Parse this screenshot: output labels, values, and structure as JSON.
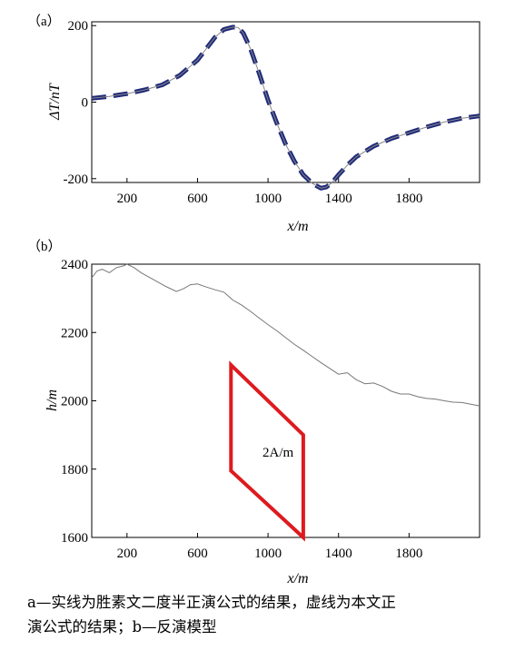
{
  "chart_data": [
    {
      "panel": "（a）",
      "type": "line",
      "ylabel": "ΔT/nT",
      "xlabel": "x/m",
      "xlim": [
        0,
        2200
      ],
      "ylim": [
        -210,
        210
      ],
      "xticks": [
        200,
        600,
        1000,
        1400,
        1800
      ],
      "yticks": [
        200,
        0,
        -200
      ],
      "grid": false,
      "series": [
        {
          "style": "solid-thin-gray",
          "color": "#888888",
          "x": [
            0,
            100,
            200,
            300,
            400,
            500,
            600,
            650,
            700,
            750,
            800,
            830,
            860,
            900,
            950,
            1000,
            1050,
            1100,
            1150,
            1200,
            1250,
            1280,
            1300,
            1330,
            1360,
            1400,
            1450,
            1500,
            1600,
            1700,
            1800,
            1900,
            2000,
            2100,
            2200
          ],
          "values": [
            10,
            15,
            22,
            32,
            45,
            70,
            110,
            140,
            170,
            190,
            196,
            195,
            180,
            140,
            75,
            5,
            -55,
            -110,
            -155,
            -190,
            -212,
            -220,
            -225,
            -222,
            -212,
            -190,
            -165,
            -143,
            -115,
            -95,
            -80,
            -65,
            -52,
            -42,
            -36
          ]
        },
        {
          "style": "dashed-bold-navy",
          "color": "#1f2a7a",
          "x": [
            0,
            100,
            200,
            300,
            400,
            500,
            600,
            650,
            700,
            750,
            800,
            830,
            860,
            900,
            950,
            1000,
            1050,
            1100,
            1150,
            1200,
            1250,
            1280,
            1300,
            1330,
            1360,
            1400,
            1450,
            1500,
            1600,
            1700,
            1800,
            1900,
            2000,
            2100,
            2200
          ],
          "values": [
            10,
            15,
            22,
            32,
            45,
            70,
            110,
            140,
            170,
            190,
            196,
            195,
            180,
            140,
            75,
            5,
            -55,
            -110,
            -155,
            -190,
            -212,
            -220,
            -225,
            -222,
            -212,
            -190,
            -165,
            -143,
            -115,
            -95,
            -80,
            -65,
            -52,
            -42,
            -36
          ]
        }
      ]
    },
    {
      "panel": "（b）",
      "type": "line",
      "ylabel": "h/m",
      "xlabel": "x/m",
      "xlim": [
        0,
        2200
      ],
      "ylim": [
        1600,
        2400
      ],
      "xticks": [
        200,
        600,
        1000,
        1400,
        1800
      ],
      "yticks": [
        2400,
        2200,
        2000,
        1800,
        1600
      ],
      "grid": false,
      "terrain": {
        "color": "#777777",
        "x": [
          0,
          30,
          60,
          100,
          140,
          180,
          200,
          240,
          280,
          350,
          420,
          480,
          520,
          560,
          600,
          650,
          700,
          750,
          800,
          850,
          900,
          950,
          1000,
          1050,
          1100,
          1150,
          1200,
          1250,
          1300,
          1350,
          1400,
          1450,
          1500,
          1550,
          1600,
          1650,
          1700,
          1750,
          1800,
          1850,
          1900,
          1950,
          2000,
          2050,
          2100,
          2150,
          2200
        ],
        "values": [
          2360,
          2380,
          2385,
          2375,
          2390,
          2395,
          2400,
          2390,
          2375,
          2355,
          2335,
          2320,
          2328,
          2340,
          2342,
          2333,
          2325,
          2318,
          2295,
          2280,
          2262,
          2242,
          2223,
          2205,
          2185,
          2165,
          2148,
          2130,
          2112,
          2095,
          2078,
          2082,
          2062,
          2050,
          2052,
          2042,
          2028,
          2020,
          2020,
          2012,
          2007,
          2005,
          2000,
          1996,
          1995,
          1990,
          1985
        ]
      },
      "model": {
        "label": "2A/m",
        "color": "#dd1b1f",
        "vertices": [
          [
            790,
            2105
          ],
          [
            1200,
            1900
          ],
          [
            1200,
            1600
          ],
          [
            790,
            1795
          ]
        ]
      }
    }
  ],
  "caption": {
    "line1": "a—实线为胜素文二度半正演公式的结果，虚线为本文正",
    "line2": "演公式的结果；b—反演模型"
  }
}
